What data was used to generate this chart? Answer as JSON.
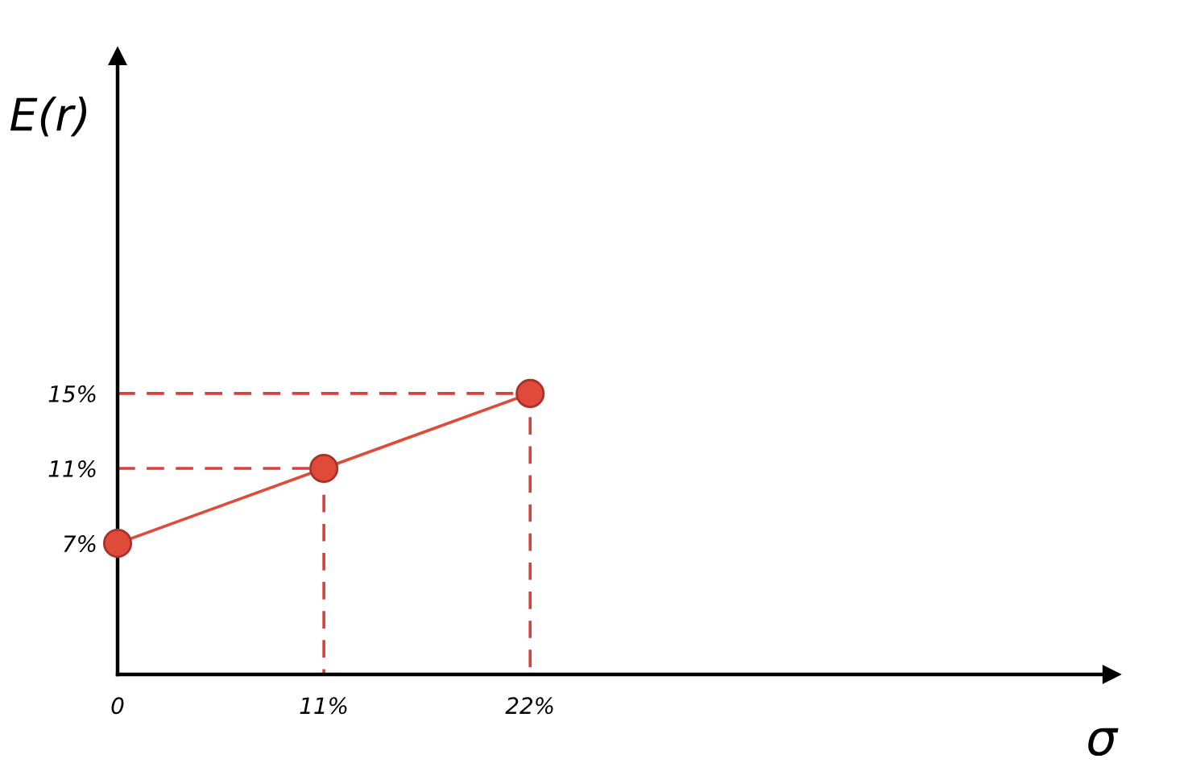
{
  "chart_data": {
    "type": "line",
    "xlabel": "σ",
    "ylabel": "E(r)",
    "xlim": [
      0,
      53
    ],
    "ylim": [
      0,
      33
    ],
    "xticks": [
      0,
      {
        "value": 11,
        "label": "11%"
      },
      {
        "value": 22,
        "label": "22%"
      }
    ],
    "yticks": [
      {
        "value": 7,
        "label": "7%"
      },
      {
        "value": 11,
        "label": "11%"
      },
      {
        "value": 15,
        "label": "15%"
      }
    ],
    "series": [
      {
        "color": "#e04a3a",
        "marker": "circle",
        "line_style": "solid",
        "x": [
          0,
          11,
          22
        ],
        "values": [
          7,
          11,
          15
        ]
      },
      {
        "color": "#d9403c",
        "marker": "none",
        "line_style": "dashed",
        "x": [
          0,
          11,
          11
        ],
        "values": [
          11,
          11,
          0
        ]
      },
      {
        "color": "#d9403c",
        "marker": "none",
        "line_style": "dashed",
        "x": [
          0,
          22,
          22
        ],
        "values": [
          15,
          15,
          0
        ]
      }
    ]
  }
}
